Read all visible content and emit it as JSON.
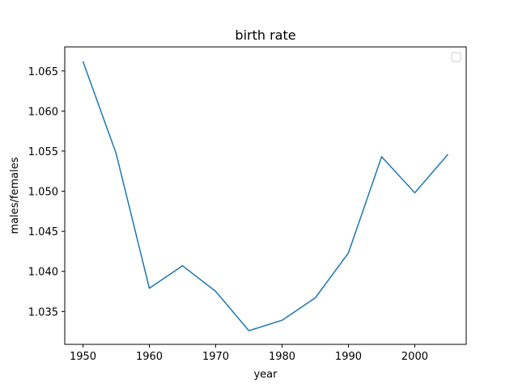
{
  "chart_data": {
    "type": "line",
    "title": "birth rate",
    "xlabel": "year",
    "ylabel": "males/females",
    "x": [
      1950,
      1955,
      1960,
      1965,
      1970,
      1975,
      1980,
      1985,
      1990,
      1995,
      2000,
      2005
    ],
    "series": [
      {
        "values": [
          1.0662,
          1.0547,
          1.0379,
          1.0407,
          1.0375,
          1.0326,
          1.0339,
          1.0367,
          1.0423,
          1.0543,
          1.0498,
          1.0546
        ],
        "color": "#1f77b4"
      }
    ],
    "xlim": [
      1947.25,
      2007.75
    ],
    "ylim": [
      1.0309,
      1.068
    ],
    "xticks": [
      1950,
      1960,
      1970,
      1980,
      1990,
      2000
    ],
    "xtick_labels": [
      "1950",
      "1960",
      "1970",
      "1980",
      "1990",
      "2000"
    ],
    "yticks": [
      1.035,
      1.04,
      1.045,
      1.05,
      1.055,
      1.06,
      1.065
    ],
    "ytick_labels": [
      "1.035",
      "1.040",
      "1.045",
      "1.050",
      "1.055",
      "1.060",
      "1.065"
    ],
    "grid": false,
    "legend": "upper-right",
    "legend_entries": []
  }
}
